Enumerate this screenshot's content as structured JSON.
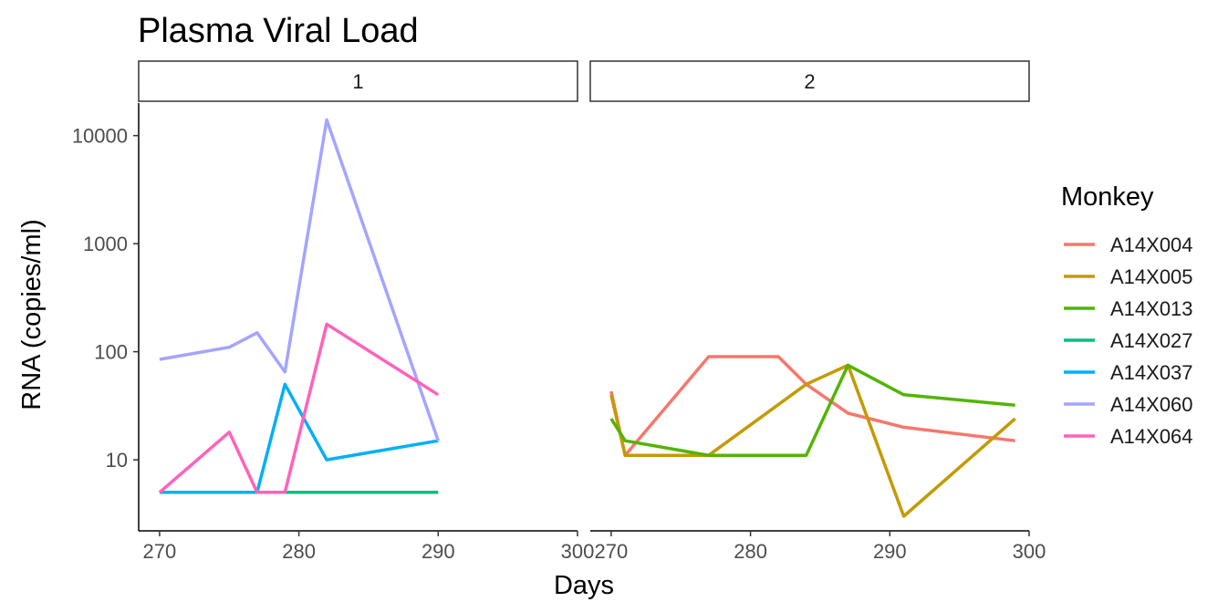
{
  "chart_data": {
    "type": "line",
    "title": "Plasma Viral Load",
    "xlabel": "Days",
    "ylabel": "RNA (copies/ml)",
    "y_scale": "log10",
    "ylim": [
      2.2,
      20000
    ],
    "xlim": [
      268.5,
      300
    ],
    "x_ticks": [
      270,
      280,
      290,
      300
    ],
    "y_ticks": [
      10,
      100,
      1000,
      10000
    ],
    "x_tick_labels": [
      "270",
      "280",
      "290",
      "300"
    ],
    "y_tick_labels": [
      "10",
      "100",
      "1000",
      "10000"
    ],
    "grid": false,
    "legend": {
      "title": "Monkey",
      "position": "right"
    },
    "panels": [
      {
        "strip_label": "1",
        "series": [
          {
            "name": "A14X027",
            "color": "#00BF7D",
            "x": [
              270,
              277,
              279,
              290
            ],
            "y": [
              5,
              5,
              5,
              5
            ]
          },
          {
            "name": "A14X037",
            "color": "#00B0F6",
            "x": [
              270,
              277,
              279,
              282,
              290
            ],
            "y": [
              5,
              5,
              50,
              10,
              15
            ]
          },
          {
            "name": "A14X060",
            "color": "#A3A5FF",
            "x": [
              270,
              275,
              277,
              279,
              282,
              290
            ],
            "y": [
              85,
              110,
              150,
              65,
              14000,
              15
            ]
          },
          {
            "name": "A14X064",
            "color": "#FF62BC",
            "x": [
              270,
              275,
              277,
              279,
              282,
              290
            ],
            "y": [
              5,
              18,
              5,
              5,
              180,
              40
            ]
          }
        ]
      },
      {
        "strip_label": "2",
        "series": [
          {
            "name": "A14X004",
            "color": "#F8766D",
            "x": [
              270,
              271,
              277,
              282,
              284,
              287,
              291,
              299
            ],
            "y": [
              43,
              11,
              90,
              90,
              50,
              27,
              20,
              15
            ]
          },
          {
            "name": "A14X005",
            "color": "#C49A00",
            "x": [
              270,
              271,
              277,
              284,
              287,
              291,
              299
            ],
            "y": [
              40,
              11,
              11,
              50,
              75,
              3,
              24
            ]
          },
          {
            "name": "A14X013",
            "color": "#53B400",
            "x": [
              270,
              271,
              277,
              284,
              287,
              291,
              299
            ],
            "y": [
              24,
              15,
              11,
              11,
              75,
              40,
              32
            ]
          }
        ]
      }
    ],
    "legend_entries": [
      {
        "name": "A14X004",
        "color": "#F8766D"
      },
      {
        "name": "A14X005",
        "color": "#C49A00"
      },
      {
        "name": "A14X013",
        "color": "#53B400"
      },
      {
        "name": "A14X027",
        "color": "#00BF7D"
      },
      {
        "name": "A14X037",
        "color": "#00B0F6"
      },
      {
        "name": "A14X060",
        "color": "#A3A5FF"
      },
      {
        "name": "A14X064",
        "color": "#FF62BC"
      }
    ]
  }
}
